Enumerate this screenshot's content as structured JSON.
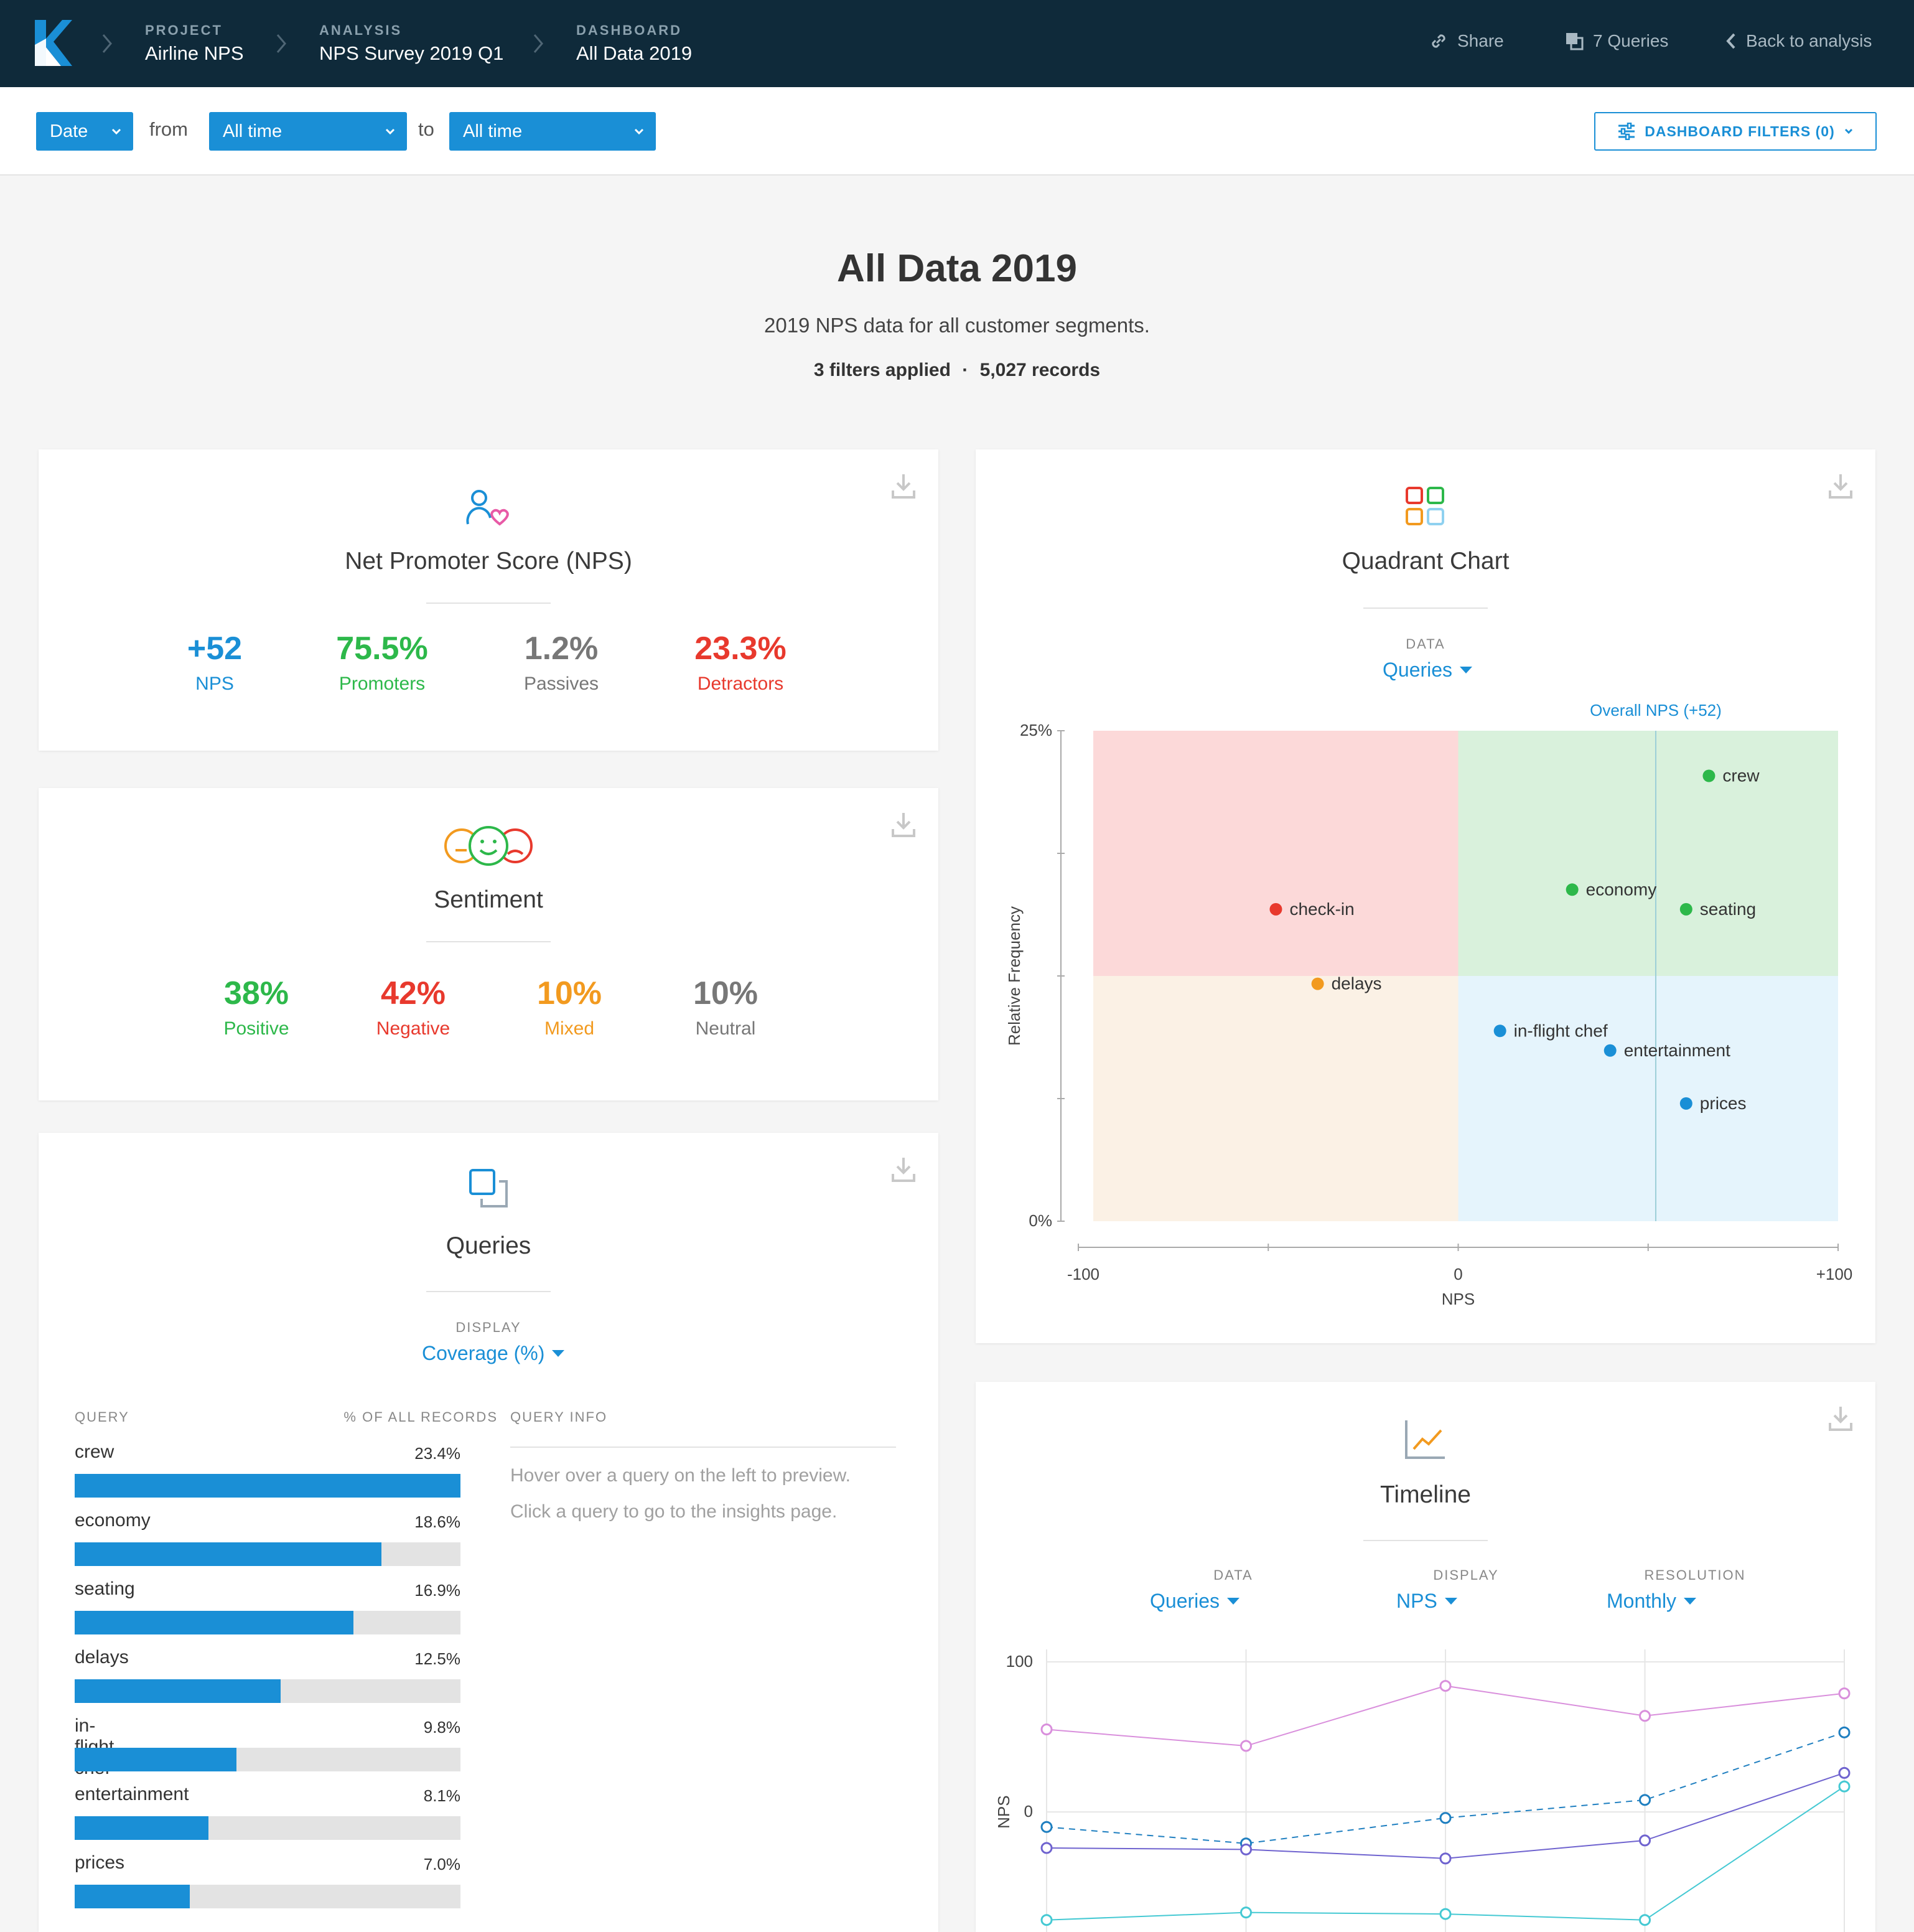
{
  "topbar": {
    "crumbs": [
      {
        "caption": "PROJECT",
        "value": "Airline NPS"
      },
      {
        "caption": "ANALYSIS",
        "value": "NPS Survey 2019 Q1"
      },
      {
        "caption": "DASHBOARD",
        "value": "All Data 2019"
      }
    ],
    "share_label": "Share",
    "queries_label": "7 Queries",
    "back_label": "Back to analysis"
  },
  "filters": {
    "field": "Date",
    "from_word": "from",
    "from_value": "All time",
    "to_word": "to",
    "to_value": "All time",
    "dashboard_filters": "DASHBOARD FILTERS (0)"
  },
  "header": {
    "title": "All Data 2019",
    "subtitle": "2019 NPS data for all customer segments.",
    "filters_applied": "3 filters applied",
    "dot": "·",
    "records": "5,027 records"
  },
  "nps_card": {
    "title": "Net Promoter Score (NPS)",
    "stats": [
      {
        "value": "+52",
        "label": "NPS",
        "color": "#1a8fd6"
      },
      {
        "value": "75.5%",
        "label": "Promoters",
        "color": "#2db84a"
      },
      {
        "value": "1.2%",
        "label": "Passives",
        "color": "#777777"
      },
      {
        "value": "23.3%",
        "label": "Detractors",
        "color": "#e8392d"
      }
    ]
  },
  "sentiment_card": {
    "title": "Sentiment",
    "stats": [
      {
        "value": "38%",
        "label": "Positive",
        "color": "#2db84a"
      },
      {
        "value": "42%",
        "label": "Negative",
        "color": "#e8392d"
      },
      {
        "value": "10%",
        "label": "Mixed",
        "color": "#f29a1f"
      },
      {
        "value": "10%",
        "label": "Neutral",
        "color": "#777777"
      }
    ]
  },
  "queries_card": {
    "title": "Queries",
    "display_caption": "DISPLAY",
    "display_value": "Coverage (%)",
    "col_query": "QUERY",
    "col_pct": "% OF ALL RECORDS",
    "col_info": "QUERY INFO",
    "info_line1": "Hover over a query on the left to preview.",
    "info_line2": "Click a query to go to the insights page.",
    "rows": [
      {
        "name": "crew",
        "pct_label": "23.4%",
        "pct": 23.4
      },
      {
        "name": "economy",
        "pct_label": "18.6%",
        "pct": 18.6
      },
      {
        "name": "seating",
        "pct_label": "16.9%",
        "pct": 16.9
      },
      {
        "name": "delays",
        "pct_label": "12.5%",
        "pct": 12.5
      },
      {
        "name": "in-flight chef",
        "pct_label": "9.8%",
        "pct": 9.8
      },
      {
        "name": "entertainment",
        "pct_label": "8.1%",
        "pct": 8.1
      },
      {
        "name": "prices",
        "pct_label": "7.0%",
        "pct": 7.0
      }
    ]
  },
  "quadrant_card": {
    "title": "Quadrant Chart",
    "data_caption": "DATA",
    "data_value": "Queries",
    "overall_label": "Overall NPS (+52)",
    "y_axis_label": "Relative Frequency",
    "x_axis_label": "NPS",
    "y_ticks": [
      "25%",
      "0%"
    ],
    "x_ticks": [
      "-100",
      "0",
      "+100"
    ]
  },
  "timeline_card": {
    "title": "Timeline",
    "data_caption": "DATA",
    "data_value": "Queries",
    "display_caption": "DISPLAY",
    "display_value": "NPS",
    "resolution_caption": "RESOLUTION",
    "resolution_value": "Monthly",
    "y_axis_label": "NPS",
    "y_ticks": [
      "100",
      "0"
    ]
  },
  "chart_data": [
    {
      "type": "scatter",
      "title": "Quadrant Chart",
      "xlabel": "NPS",
      "ylabel": "Relative Frequency",
      "xlim": [
        -100,
        100
      ],
      "ylim": [
        0,
        25
      ],
      "overall_nps": 52,
      "points": [
        {
          "label": "crew",
          "x": 66,
          "y": 22.7,
          "color": "#2db84a"
        },
        {
          "label": "economy",
          "x": 30,
          "y": 16.9,
          "color": "#2db84a"
        },
        {
          "label": "seating",
          "x": 60,
          "y": 15.9,
          "color": "#2db84a"
        },
        {
          "label": "check-in",
          "x": -48,
          "y": 15.9,
          "color": "#e8392d"
        },
        {
          "label": "delays",
          "x": -37,
          "y": 12.1,
          "color": "#f29a1f"
        },
        {
          "label": "in-flight chef",
          "x": 11,
          "y": 9.7,
          "color": "#1a8fd6"
        },
        {
          "label": "entertainment",
          "x": 40,
          "y": 8.7,
          "color": "#1a8fd6"
        },
        {
          "label": "prices",
          "x": 60,
          "y": 6.0,
          "color": "#1a8fd6"
        }
      ]
    },
    {
      "type": "line",
      "title": "Timeline",
      "ylabel": "NPS",
      "ylim": [
        -80,
        100
      ],
      "x": [
        1,
        2,
        3,
        4,
        5
      ],
      "series": [
        {
          "values": [
            55,
            44,
            84,
            64,
            79
          ],
          "color": "#d98fdc",
          "dashed": false
        },
        {
          "values": [
            -10,
            -21,
            -4,
            8,
            53
          ],
          "color": "#1f7fc0",
          "dashed": true
        },
        {
          "values": [
            -24,
            -25,
            -31,
            -19,
            26
          ],
          "color": "#6f63cf",
          "dashed": false
        },
        {
          "values": [
            -72,
            -67,
            -68,
            -72,
            17
          ],
          "color": "#45c9d3",
          "dashed": false
        }
      ]
    }
  ]
}
